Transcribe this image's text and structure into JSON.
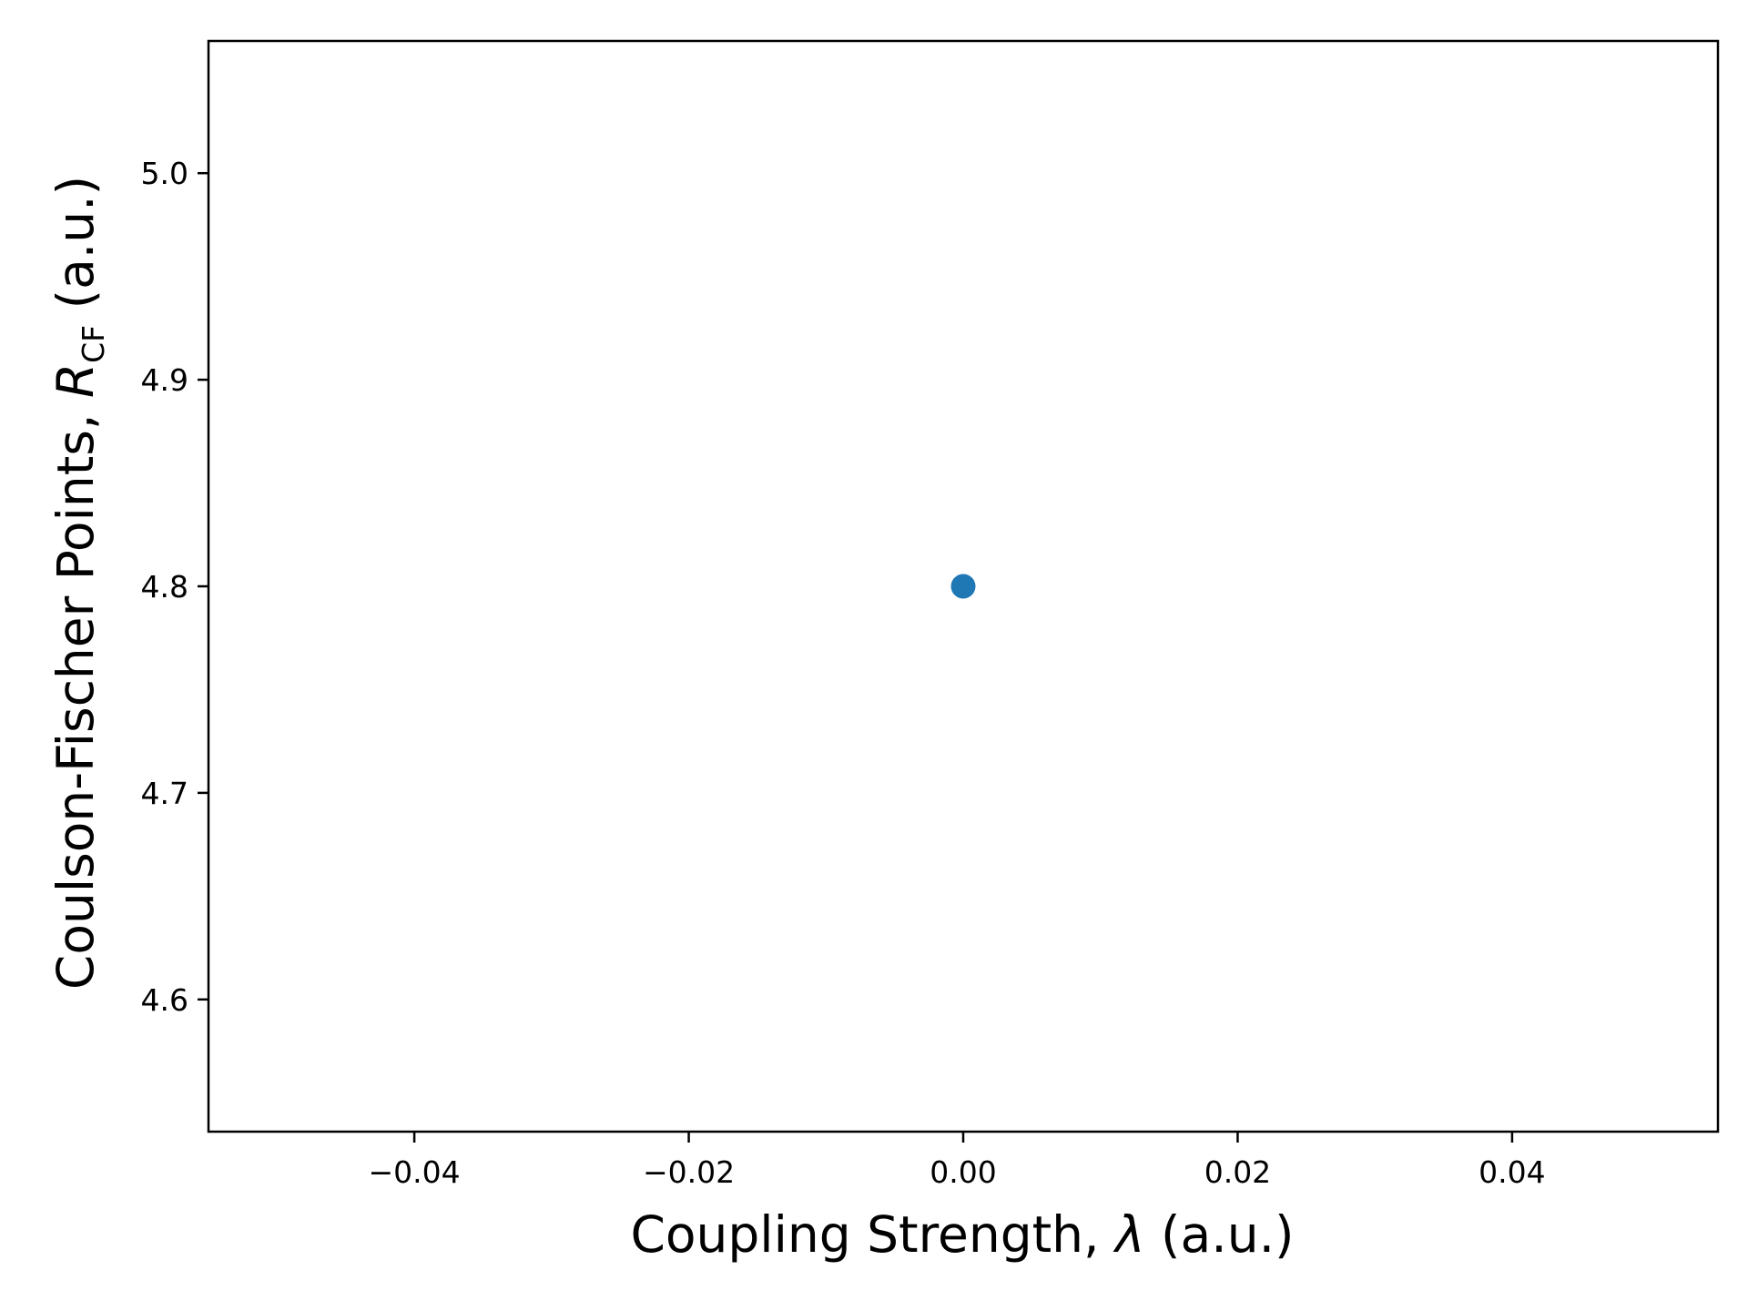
{
  "chart_data": {
    "type": "scatter",
    "xlabel": {
      "before": "Coupling Strength, ",
      "symbol": "λ",
      "after": " (a.u.)"
    },
    "ylabel": {
      "before": "Coulson-Fischer Points, ",
      "symbol": "R",
      "subscript": "CF",
      "after": " (a.u.)"
    },
    "xlim": [
      -0.055,
      0.055
    ],
    "ylim": [
      4.536,
      5.064
    ],
    "xticks": [
      -0.04,
      -0.02,
      0.0,
      0.02,
      0.04
    ],
    "xtick_labels": [
      "−0.04",
      "−0.02",
      "0.00",
      "0.02",
      "0.04"
    ],
    "yticks": [
      4.6,
      4.7,
      4.8,
      4.9,
      5.0
    ],
    "ytick_labels": [
      "4.6",
      "4.7",
      "4.8",
      "4.9",
      "5.0"
    ],
    "grid": false,
    "series": [
      {
        "color": "#1f77b4",
        "points": [
          {
            "x": 0.0,
            "y": 4.8
          }
        ]
      }
    ]
  }
}
